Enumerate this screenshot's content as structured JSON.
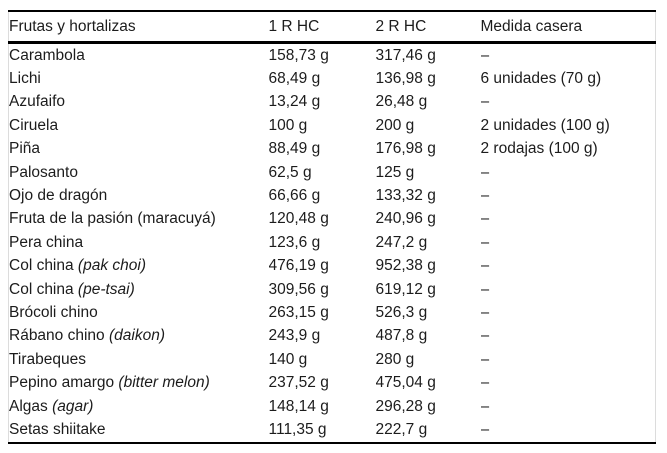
{
  "colors": {
    "background": "#ffffff",
    "text": "#1c1c1c",
    "rule_heavy": "#000000",
    "rule_side": "#dcdcdc"
  },
  "table": {
    "headers": {
      "food": "Frutas y hortalizas",
      "r1": "1 R HC",
      "r2": "2 R HC",
      "measure": "Medida casera"
    },
    "rows": [
      {
        "name": "Carambola",
        "name_italic": "",
        "rhc1": "158,73 g",
        "rhc2": "317,46 g",
        "measure": "–"
      },
      {
        "name": "Lichi",
        "name_italic": "",
        "rhc1": "68,49 g",
        "rhc2": "136,98 g",
        "measure": "6 unidades (70 g)"
      },
      {
        "name": "Azufaifo",
        "name_italic": "",
        "rhc1": "13,24 g",
        "rhc2": "26,48 g",
        "measure": "–"
      },
      {
        "name": "Ciruela",
        "name_italic": "",
        "rhc1": "100 g",
        "rhc2": "200 g",
        "measure": "2 unidades (100 g)"
      },
      {
        "name": "Piña",
        "name_italic": "",
        "rhc1": "88,49 g",
        "rhc2": "176,98 g",
        "measure": "2 rodajas (100 g)"
      },
      {
        "name": "Palosanto",
        "name_italic": "",
        "rhc1": "62,5 g",
        "rhc2": "125 g",
        "measure": "–"
      },
      {
        "name": "Ojo de dragón",
        "name_italic": "",
        "rhc1": "66,66 g",
        "rhc2": "133,32 g",
        "measure": "–"
      },
      {
        "name": "Fruta de la pasión (maracuyá)",
        "name_italic": "",
        "rhc1": "120,48 g",
        "rhc2": "240,96 g",
        "measure": "–"
      },
      {
        "name": "Pera china",
        "name_italic": "",
        "rhc1": "123,6 g",
        "rhc2": "247,2 g",
        "measure": "–"
      },
      {
        "name": "Col china",
        "name_italic": "(pak choi)",
        "rhc1": "476,19 g",
        "rhc2": "952,38 g",
        "measure": "–"
      },
      {
        "name": "Col china",
        "name_italic": "(pe-tsai)",
        "rhc1": "309,56 g",
        "rhc2": "619,12 g",
        "measure": "–"
      },
      {
        "name": "Brócoli chino",
        "name_italic": "",
        "rhc1": "263,15 g",
        "rhc2": "526,3 g",
        "measure": "–"
      },
      {
        "name": "Rábano chino",
        "name_italic": "(daikon)",
        "rhc1": "243,9 g",
        "rhc2": "487,8 g",
        "measure": "–"
      },
      {
        "name": "Tirabeques",
        "name_italic": "",
        "rhc1": "140 g",
        "rhc2": "280 g",
        "measure": "–"
      },
      {
        "name": "Pepino amargo",
        "name_italic": "(bitter melon)",
        "rhc1": "237,52 g",
        "rhc2": "475,04 g",
        "measure": "–"
      },
      {
        "name": "Algas",
        "name_italic": "(agar)",
        "rhc1": "148,14 g",
        "rhc2": "296,28 g",
        "measure": "–"
      },
      {
        "name": "Setas shiitake",
        "name_italic": "",
        "rhc1": "111,35 g",
        "rhc2": "222,7 g",
        "measure": "–"
      }
    ]
  }
}
